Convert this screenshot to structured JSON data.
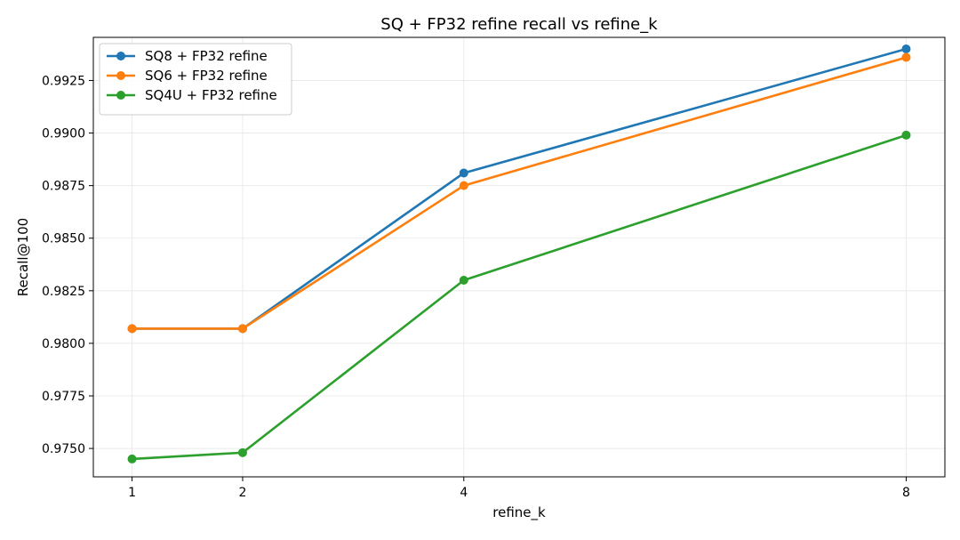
{
  "chart_data": {
    "type": "line",
    "title": "SQ + FP32 refine recall vs refine_k",
    "xlabel": "refine_k",
    "ylabel": "Recall@100",
    "x": [
      1,
      2,
      4,
      8
    ],
    "xticks": [
      "1",
      "2",
      "4",
      "8"
    ],
    "xlim": [
      0.65,
      8.35
    ],
    "yticks": [
      "0.9750",
      "0.9775",
      "0.9800",
      "0.9825",
      "0.9850",
      "0.9875",
      "0.9900",
      "0.9925"
    ],
    "ylim": [
      0.97365,
      0.99455
    ],
    "grid": true,
    "legend_position": "top-left",
    "series": [
      {
        "name": "SQ8 + FP32 refine",
        "color": "#1f77b4",
        "values": [
          0.9807,
          0.9807,
          0.9881,
          0.994
        ]
      },
      {
        "name": "SQ6 + FP32 refine",
        "color": "#ff7f0e",
        "values": [
          0.9807,
          0.9807,
          0.9875,
          0.9936
        ]
      },
      {
        "name": "SQ4U + FP32 refine",
        "color": "#2ca02c",
        "values": [
          0.9745,
          0.9748,
          0.983,
          0.9899
        ]
      }
    ]
  }
}
